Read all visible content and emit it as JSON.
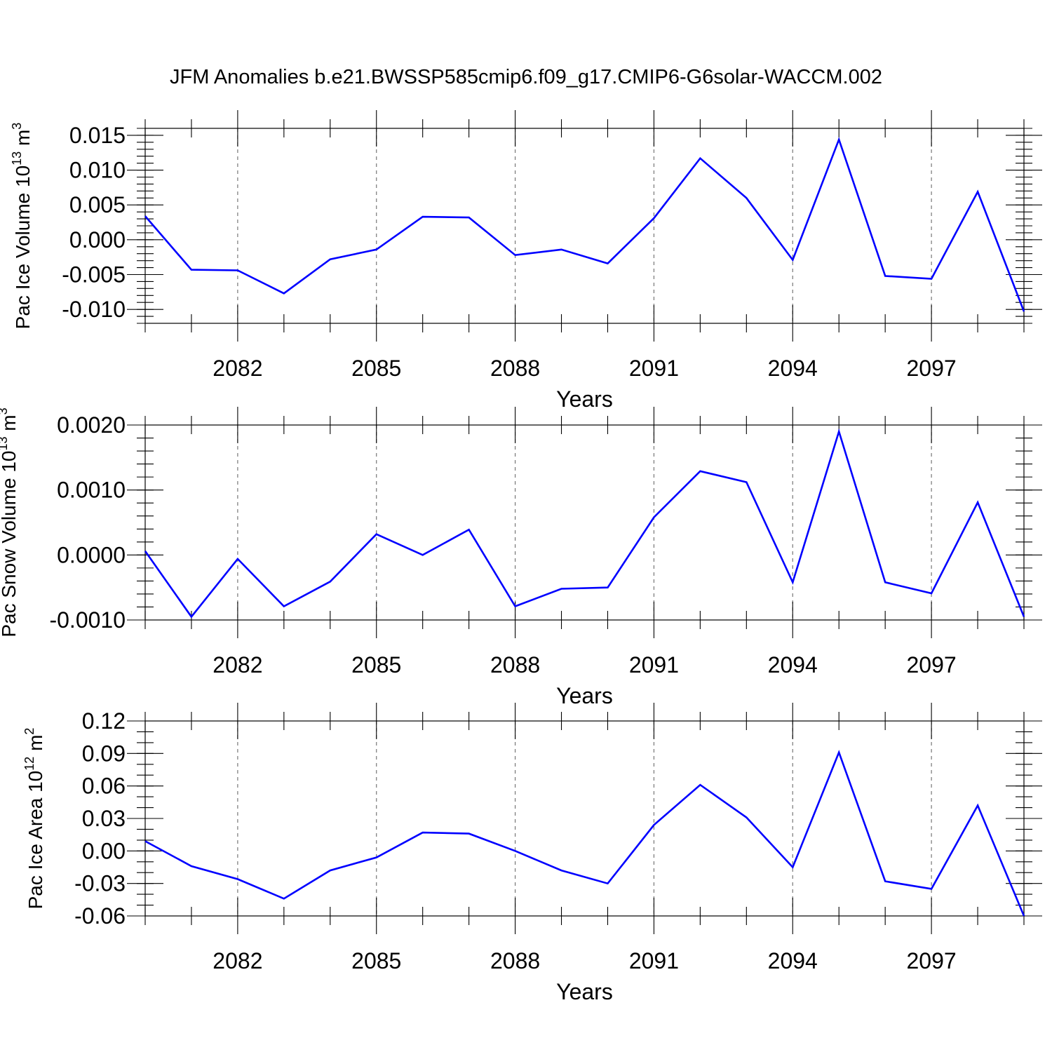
{
  "title": "JFM Anomalies b.e21.BWSSP585cmip6.f09_g17.CMIP6-G6solar-WACCM.002",
  "colors": {
    "line": "#0000ff",
    "grid": "#777777",
    "axis": "#000000"
  },
  "chart_data": [
    {
      "type": "line",
      "xlabel": "Years",
      "ylabel": {
        "main": "Pac Ice Volume 10",
        "sup": "13",
        "unit": " m",
        "unit_sup": "3"
      },
      "x": [
        2080,
        2081,
        2082,
        2083,
        2084,
        2085,
        2086,
        2087,
        2088,
        2089,
        2090,
        2091,
        2092,
        2093,
        2094,
        2095,
        2096,
        2097,
        2098,
        2099
      ],
      "values": [
        0.0034,
        -0.0043,
        -0.0044,
        -0.0077,
        -0.0028,
        -0.0014,
        0.0033,
        0.0032,
        -0.0022,
        -0.0014,
        -0.0034,
        0.0031,
        0.0117,
        0.006,
        -0.0029,
        0.0144,
        -0.0052,
        -0.0056,
        0.0069,
        -0.0103
      ],
      "xlim": [
        2080,
        2099
      ],
      "ylim": [
        -0.012,
        0.016
      ],
      "yticks": [
        -0.01,
        -0.005,
        0.0,
        0.005,
        0.01,
        0.015
      ],
      "ytick_labels": [
        "-0.010",
        "-0.005",
        "0.000",
        "0.005",
        "0.010",
        "0.015"
      ],
      "yminor": 0.001,
      "xticks": [
        2082,
        2085,
        2088,
        2091,
        2094,
        2097
      ],
      "xtick_labels": [
        "2082",
        "2085",
        "2088",
        "2091",
        "2094",
        "2097"
      ],
      "grid": "vertical-dashed"
    },
    {
      "type": "line",
      "xlabel": "Years",
      "ylabel": {
        "main": "Pac Snow Volume 10",
        "sup": "13",
        "unit": " m",
        "unit_sup": "3"
      },
      "x": [
        2080,
        2081,
        2082,
        2083,
        2084,
        2085,
        2086,
        2087,
        2088,
        2089,
        2090,
        2091,
        2092,
        2093,
        2094,
        2095,
        2096,
        2097,
        2098,
        2099
      ],
      "values": [
        6e-05,
        -0.00095,
        -6e-05,
        -0.00079,
        -0.00041,
        0.00032,
        0.0,
        0.00039,
        -0.00079,
        -0.00052,
        -0.0005,
        0.00058,
        0.00129,
        0.00112,
        -0.00042,
        0.0019,
        -0.00042,
        -0.00059,
        0.00081,
        -0.00095
      ],
      "xlim": [
        2080,
        2099
      ],
      "ylim": [
        -0.001,
        0.002
      ],
      "yticks": [
        -0.001,
        0.0,
        0.001,
        0.002
      ],
      "ytick_labels": [
        "-0.0010",
        "0.0000",
        "0.0010",
        "0.0020"
      ],
      "yminor": 0.0002,
      "xticks": [
        2082,
        2085,
        2088,
        2091,
        2094,
        2097
      ],
      "xtick_labels": [
        "2082",
        "2085",
        "2088",
        "2091",
        "2094",
        "2097"
      ],
      "grid": "vertical-dashed"
    },
    {
      "type": "line",
      "xlabel": "Years",
      "ylabel": {
        "main": "Pac Ice Area 10",
        "sup": "12",
        "unit": " m",
        "unit_sup": "2"
      },
      "x": [
        2080,
        2081,
        2082,
        2083,
        2084,
        2085,
        2086,
        2087,
        2088,
        2089,
        2090,
        2091,
        2092,
        2093,
        2094,
        2095,
        2096,
        2097,
        2098,
        2099
      ],
      "values": [
        0.009,
        -0.014,
        -0.026,
        -0.044,
        -0.018,
        -0.006,
        0.017,
        0.016,
        0.0,
        -0.018,
        -0.03,
        0.024,
        0.061,
        0.031,
        -0.015,
        0.091,
        -0.028,
        -0.035,
        0.042,
        -0.06
      ],
      "xlim": [
        2080,
        2099
      ],
      "ylim": [
        -0.06,
        0.12
      ],
      "yticks": [
        -0.06,
        -0.03,
        0.0,
        0.03,
        0.06,
        0.09,
        0.12
      ],
      "ytick_labels": [
        "-0.06",
        "-0.03",
        "0.00",
        "0.03",
        "0.06",
        "0.09",
        "0.12"
      ],
      "yminor": 0.01,
      "xticks": [
        2082,
        2085,
        2088,
        2091,
        2094,
        2097
      ],
      "xtick_labels": [
        "2082",
        "2085",
        "2088",
        "2091",
        "2094",
        "2097"
      ],
      "grid": "vertical-dashed"
    }
  ]
}
